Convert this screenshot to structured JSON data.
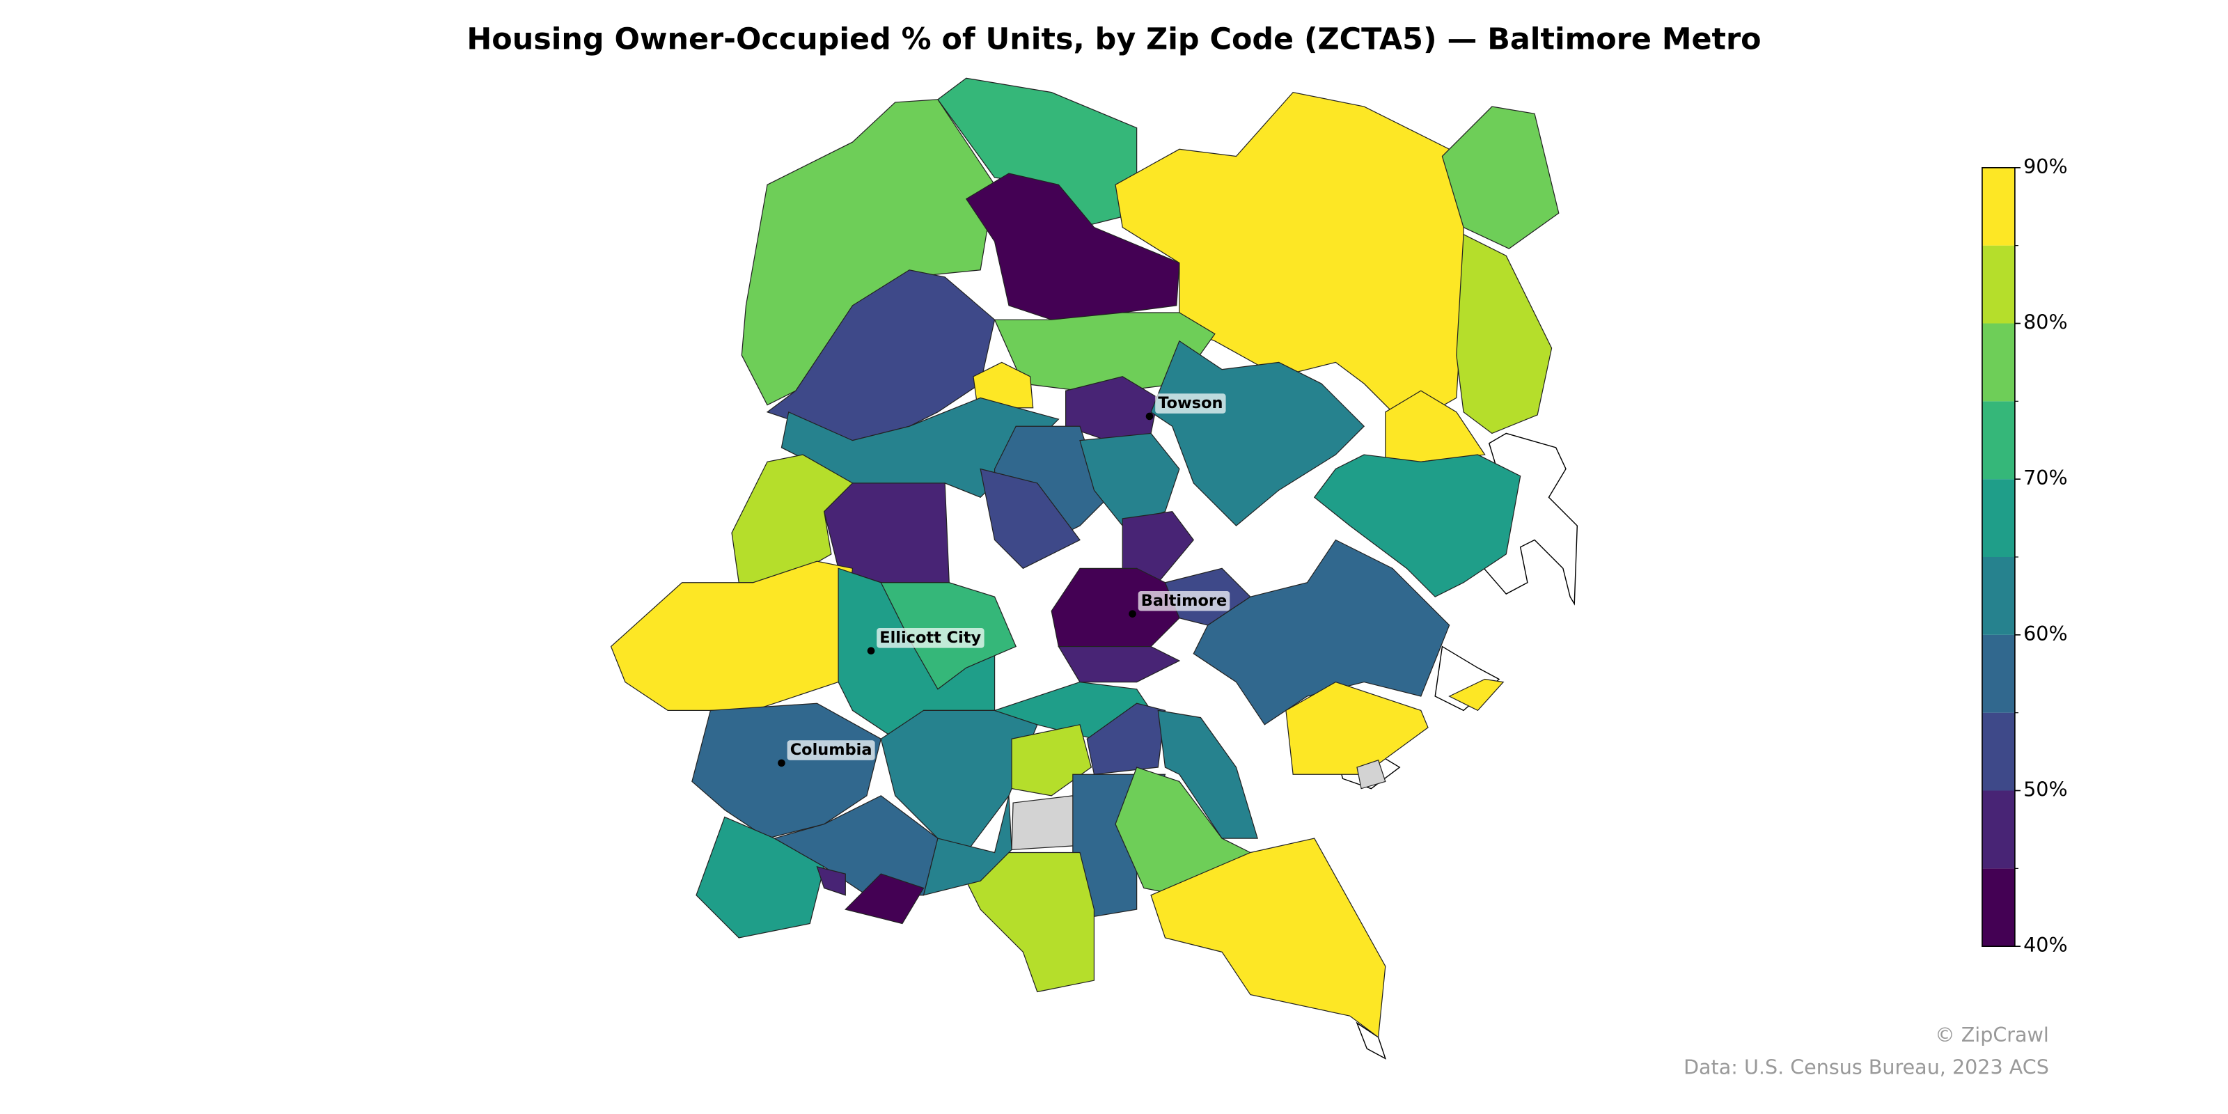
{
  "chart_data": {
    "type": "choropleth",
    "title": "Housing Owner-Occupied % of Units, by Zip Code (ZCTA5) — Baltimore Metro",
    "values": [
      78,
      72,
      42,
      88,
      78,
      82,
      88,
      52,
      77,
      87,
      47,
      64,
      67,
      63,
      82,
      48,
      88,
      66,
      72,
      58,
      53,
      63,
      47,
      42,
      48,
      52,
      58,
      88,
      88,
      59,
      66,
      57,
      63,
      42,
      48,
      67,
      82,
      null,
      52,
      57,
      77,
      63,
      82,
      88,
      64,
      null
    ],
    "missing_color": "#d3d3d3",
    "colorbar": {
      "bins": [
        40,
        45,
        50,
        55,
        60,
        65,
        70,
        75,
        80,
        85,
        90
      ],
      "colors": [
        "#440154",
        "#482475",
        "#3e4989",
        "#31688e",
        "#26828e",
        "#1f9e89",
        "#35b779",
        "#6ece58",
        "#b5de2b",
        "#fde725"
      ],
      "ticks": [
        {
          "value": 40,
          "label": "40%"
        },
        {
          "value": 50,
          "label": "50%"
        },
        {
          "value": 60,
          "label": "60%"
        },
        {
          "value": 70,
          "label": "70%"
        },
        {
          "value": 80,
          "label": "80%"
        },
        {
          "value": 90,
          "label": "90%"
        }
      ]
    },
    "cities": [
      "Towson",
      "Baltimore",
      "Ellicott City",
      "Columbia"
    ],
    "credits": [
      "© ZipCrawl",
      "Data: U.S. Census Bureau, 2023 ACS"
    ]
  }
}
